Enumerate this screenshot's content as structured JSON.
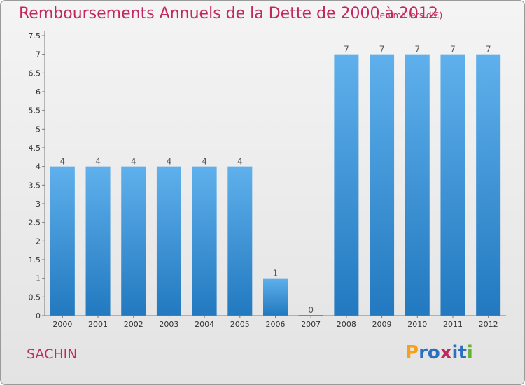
{
  "header": {
    "title": "Remboursements Annuels de la Dette de 2000 à 2012",
    "unit": "(en milliers d'€)"
  },
  "footer": {
    "commune": "SACHIN",
    "logo_letters": [
      "P",
      "r",
      "o",
      "x",
      "i",
      "t",
      "i"
    ],
    "logo_colors": [
      "#f7a01e",
      "#2a6fc0",
      "#2a6fc0",
      "#c2285f",
      "#2a6fc0",
      "#2a6fc0",
      "#63b234"
    ]
  },
  "colors": {
    "bar_light": "#5fb0ec",
    "bar_dark": "#2279bf",
    "text": "#c2285f"
  },
  "chart_data": {
    "type": "bar",
    "title": "Remboursements Annuels de la Dette de 2000 à 2012",
    "categories": [
      "2000",
      "2001",
      "2002",
      "2003",
      "2004",
      "2005",
      "2006",
      "2007",
      "2008",
      "2009",
      "2010",
      "2011",
      "2012"
    ],
    "values": [
      4,
      4,
      4,
      4,
      4,
      4,
      1,
      0,
      7,
      7,
      7,
      7,
      7
    ],
    "data_labels": [
      "4",
      "4",
      "4",
      "4",
      "4",
      "4",
      "1",
      "0",
      "7",
      "7",
      "7",
      "7",
      "7"
    ],
    "ylim": [
      0,
      7.5
    ],
    "yticks": [
      0,
      0.5,
      1,
      1.5,
      2,
      2.5,
      3,
      3.5,
      4,
      4.5,
      5,
      5.5,
      6,
      6.5,
      7,
      7.5
    ],
    "ytick_labels": [
      "0",
      "0.5",
      "1",
      "1.5",
      "2",
      "2.5",
      "3",
      "3.5",
      "4",
      "4.5",
      "5",
      "5.5",
      "6",
      "6.5",
      "7",
      "7.5"
    ],
    "grid": false,
    "legend": "none"
  }
}
